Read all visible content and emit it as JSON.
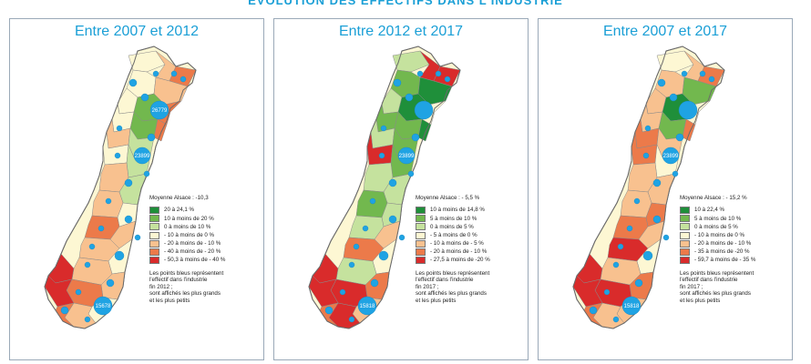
{
  "title": "ÉVOLUTION DES EFFECTIFS DANS L'INDUSTRIE",
  "colors": {
    "title": "#1a9fd6",
    "bubble": "#1fa3e3",
    "classes": [
      "#1f8f3a",
      "#72b84e",
      "#c5e29e",
      "#fdf7d3",
      "#f8c18f",
      "#ec7a4a",
      "#d92b2b"
    ]
  },
  "maps": [
    {
      "title": "Entre 2007 et 2012",
      "bubble_labels": [
        "23899",
        "26779",
        "15678"
      ],
      "legend": {
        "title": "Moyenne Alsace : -10,3",
        "items": [
          "20 à 24,1 %",
          "10 à moins de 20 %",
          "0 à moins de 10 %",
          "- 10 à moins de 0 %",
          "- 20 à moins de - 10 %",
          "- 40 à moins de - 20 %",
          "- 50,3 à moins de - 40 %"
        ],
        "note": "Les points bleus représentent\nl'effectif dans l'industrie\nfin 2012 ;\nsont affichés les plus grands\net les plus petits"
      }
    },
    {
      "title": "Entre 2012 et 2017",
      "bubble_labels": [
        "23899",
        "15818"
      ],
      "legend": {
        "title": "Moyenne Alsace : - 5,5 %",
        "items": [
          "10 à moins de 14,8 %",
          "5 à moins de 10 %",
          "0 à moins de 5 %",
          "- 5 à moins de 0 %",
          "- 10 à moins de - 5 %",
          "- 20 à moins de - 10 %",
          "- 27,5 à moins de -20 %"
        ],
        "note": "Les points bleus représentent\nl'effectif dans l'industrie\nfin 2017 ;\nsont affichés les plus grands\net les plus petits"
      }
    },
    {
      "title": "Entre 2007 et 2017",
      "bubble_labels": [
        "23899",
        "15818"
      ],
      "legend": {
        "title": "Moyenne Alsace : - 15,2 %",
        "items": [
          "10 à 22,4 %",
          "5 à moins de 10 %",
          "0 à moins de 5 %",
          "- 10 à moins de 0 %",
          "- 20 à moins de - 10 %",
          "- 35 à moins de -20 %",
          "- 59,7 à moins de - 35 %"
        ],
        "note": "Les points bleus représentent\nl'effectif dans l'industrie\nfin 2017 ;\nsont affichés les plus grands\net les plus petits"
      }
    }
  ]
}
